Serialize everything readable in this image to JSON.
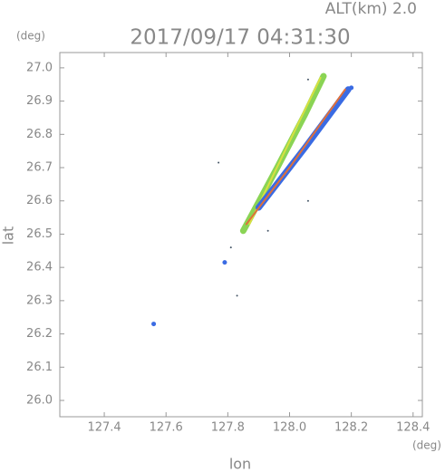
{
  "chart_data": {
    "type": "scatter",
    "title": "2017/09/17 04:31:30",
    "altitude_label": "ALT(km) 2.0",
    "y_unit": "(deg)",
    "x_unit": "(deg)",
    "x_label": "lon",
    "y_label": "lat",
    "xlim": [
      127.256,
      128.43
    ],
    "ylim": [
      25.951,
      27.046
    ],
    "xticks": [
      127.4,
      127.6,
      127.8,
      {
        "value": 128,
        "label": "128.0"
      },
      128.2,
      128.4
    ],
    "yticks": [
      {
        "value": 26,
        "label": "26.0"
      },
      26.1,
      26.2,
      26.3,
      26.4,
      26.5,
      26.6,
      26.7,
      26.8,
      26.9,
      {
        "value": 27,
        "label": "27.0"
      }
    ],
    "series": [
      {
        "color": "#8ad455",
        "line_width": 7,
        "x": [
          127.85,
          127.96,
          128.05,
          128.11
        ],
        "values": [
          26.51,
          26.7,
          26.86,
          26.975
        ]
      },
      {
        "color": "#d8e040",
        "line_width": 2,
        "x": [
          127.87,
          128.1
        ],
        "values": [
          26.53,
          26.97
        ]
      },
      {
        "color": "#3a6be3",
        "line_width": 7,
        "x": [
          127.9,
          128.05,
          128.19
        ],
        "values": [
          26.58,
          26.76,
          26.935
        ]
      },
      {
        "color": "#e0703a",
        "line_width": 2,
        "x": [
          127.86,
          128.0,
          128.18
        ],
        "values": [
          26.53,
          26.7,
          26.935
        ]
      },
      {
        "color": "#3a6be3",
        "marker_size": 2.5,
        "x": [
          127.56,
          127.79,
          128.2
        ],
        "values": [
          26.23,
          26.415,
          26.94
        ]
      },
      {
        "color": "#445566",
        "marker_size": 1,
        "x": [
          127.77,
          128.06,
          127.83,
          127.93,
          128.06,
          127.81
        ],
        "values": [
          26.715,
          26.965,
          26.315,
          26.51,
          26.6,
          26.46
        ]
      }
    ]
  }
}
